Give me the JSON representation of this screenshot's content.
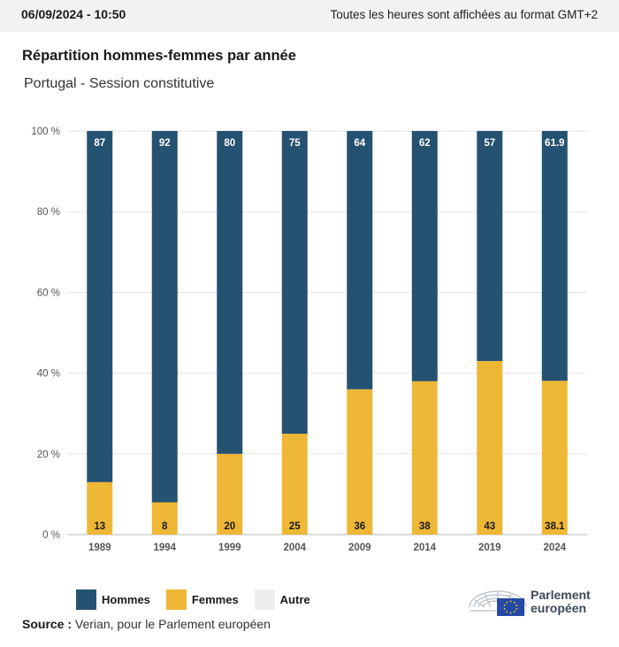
{
  "header": {
    "datetime": "06/09/2024 - 10:50",
    "timezone_note": "Toutes les heures sont affichées au format GMT+2"
  },
  "title": "Répartition hommes-femmes par année",
  "subtitle": "Portugal - Session constitutive",
  "colors": {
    "hommes": "#255270",
    "femmes": "#eeb736",
    "autre": "#eeeef0",
    "grid": "#e3e3e3"
  },
  "chart_data": {
    "type": "bar",
    "stacked": true,
    "title": "Répartition hommes-femmes par année",
    "categories": [
      "1989",
      "1994",
      "1999",
      "2004",
      "2009",
      "2014",
      "2019",
      "2024"
    ],
    "series": [
      {
        "name": "Femmes",
        "values": [
          13,
          8,
          20,
          25,
          36,
          38,
          43,
          38.1
        ],
        "labels": [
          "13",
          "8",
          "20",
          "25",
          "36",
          "38",
          "43",
          "38.1"
        ]
      },
      {
        "name": "Hommes",
        "values": [
          87,
          92,
          80,
          75,
          64,
          62,
          57,
          61.9
        ],
        "labels": [
          "87",
          "92",
          "80",
          "75",
          "64",
          "62",
          "57",
          "61.9"
        ]
      },
      {
        "name": "Autre",
        "values": [
          0,
          0,
          0,
          0,
          0,
          0,
          0,
          0
        ]
      }
    ],
    "ylim": [
      0,
      100
    ],
    "yticks": [
      "0 %",
      "20 %",
      "40 %",
      "60 %",
      "80 %",
      "100 %"
    ],
    "xlabel": "",
    "ylabel": "",
    "grid": true,
    "legend_position": "bottom-left"
  },
  "legend": {
    "hommes": "Hommes",
    "femmes": "Femmes",
    "autre": "Autre"
  },
  "source": {
    "label": "Source :",
    "text": "Verian, pour le Parlement européen"
  },
  "logo": {
    "line1": "Parlement",
    "line2": "européen"
  }
}
